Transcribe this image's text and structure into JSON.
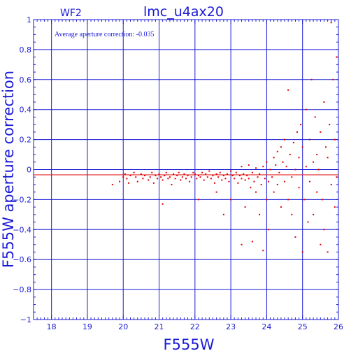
{
  "chart_data": {
    "type": "scatter",
    "title": "lmc_u4ax20",
    "panel_label": "WF2",
    "annotation": "Average aperture correction: -0.035",
    "xlabel": "F555W",
    "ylabel": "F555W aperture correction",
    "xlim": [
      17.5,
      26
    ],
    "ylim": [
      -1,
      1
    ],
    "x_ticks": [
      "18",
      "19",
      "20",
      "21",
      "22",
      "23",
      "24",
      "25",
      "26"
    ],
    "y_ticks": [
      "−1",
      "−0.8",
      "−0.6",
      "−0.4",
      "−0.2",
      "0",
      "0.2",
      "0.4",
      "0.6",
      "0.8",
      "1"
    ],
    "grid": true,
    "reference_line_y": -0.035,
    "colors": {
      "axes": "#1a1ad6",
      "points": "#e00000",
      "reference_line": "#e00000"
    },
    "series": [
      {
        "points": [
          [
            19.7,
            -0.1
          ],
          [
            19.9,
            -0.08
          ],
          [
            20.0,
            -0.05
          ],
          [
            20.05,
            -0.03
          ],
          [
            20.1,
            -0.06
          ],
          [
            20.15,
            -0.09
          ],
          [
            20.2,
            -0.04
          ],
          [
            20.3,
            -0.02
          ],
          [
            20.35,
            -0.05
          ],
          [
            20.4,
            -0.08
          ],
          [
            20.5,
            -0.03
          ],
          [
            20.55,
            -0.06
          ],
          [
            20.6,
            -0.04
          ],
          [
            20.7,
            -0.07
          ],
          [
            20.75,
            -0.05
          ],
          [
            20.8,
            -0.02
          ],
          [
            20.85,
            -0.09
          ],
          [
            20.9,
            -0.04
          ],
          [
            20.95,
            -0.06
          ],
          [
            21.0,
            -0.03
          ],
          [
            21.05,
            -0.05
          ],
          [
            21.1,
            -0.07
          ],
          [
            21.1,
            -0.23
          ],
          [
            21.15,
            -0.04
          ],
          [
            21.2,
            -0.02
          ],
          [
            21.25,
            -0.06
          ],
          [
            21.3,
            -0.05
          ],
          [
            21.35,
            -0.1
          ],
          [
            21.4,
            -0.03
          ],
          [
            21.45,
            -0.06
          ],
          [
            21.5,
            -0.04
          ],
          [
            21.55,
            -0.02
          ],
          [
            21.6,
            -0.07
          ],
          [
            21.65,
            -0.05
          ],
          [
            21.7,
            -0.03
          ],
          [
            21.75,
            -0.06
          ],
          [
            21.8,
            -0.04
          ],
          [
            21.85,
            -0.08
          ],
          [
            21.9,
            -0.05
          ],
          [
            21.95,
            -0.02
          ],
          [
            22.0,
            -0.03
          ],
          [
            22.05,
            -0.06
          ],
          [
            22.1,
            -0.04
          ],
          [
            22.1,
            -0.2
          ],
          [
            22.15,
            -0.05
          ],
          [
            22.2,
            -0.02
          ],
          [
            22.25,
            -0.07
          ],
          [
            22.3,
            -0.03
          ],
          [
            22.35,
            -0.05
          ],
          [
            22.4,
            -0.01
          ],
          [
            22.45,
            -0.06
          ],
          [
            22.5,
            -0.04
          ],
          [
            22.55,
            -0.09
          ],
          [
            22.6,
            -0.03
          ],
          [
            22.6,
            -0.15
          ],
          [
            22.65,
            -0.05
          ],
          [
            22.7,
            -0.02
          ],
          [
            22.75,
            -0.07
          ],
          [
            22.8,
            -0.04
          ],
          [
            22.8,
            -0.3
          ],
          [
            22.85,
            -0.06
          ],
          [
            22.9,
            -0.03
          ],
          [
            22.95,
            -0.08
          ],
          [
            23.0,
            -0.01
          ],
          [
            23.0,
            -0.2
          ],
          [
            23.05,
            -0.04
          ],
          [
            23.1,
            -0.06
          ],
          [
            23.15,
            -0.02
          ],
          [
            23.2,
            -0.09
          ],
          [
            23.25,
            -0.04
          ],
          [
            23.3,
            -0.06
          ],
          [
            23.3,
            0.02
          ],
          [
            23.3,
            -0.5
          ],
          [
            23.35,
            -0.03
          ],
          [
            23.4,
            -0.07
          ],
          [
            23.4,
            -0.25
          ],
          [
            23.45,
            -0.04
          ],
          [
            23.5,
            0.03
          ],
          [
            23.5,
            -0.06
          ],
          [
            23.55,
            -0.12
          ],
          [
            23.6,
            -0.02
          ],
          [
            23.6,
            -0.48
          ],
          [
            23.65,
            -0.08
          ],
          [
            23.7,
            0.01
          ],
          [
            23.7,
            -0.15
          ],
          [
            23.75,
            -0.05
          ],
          [
            23.8,
            -0.03
          ],
          [
            23.8,
            -0.3
          ],
          [
            23.85,
            -0.1
          ],
          [
            23.9,
            0.02
          ],
          [
            23.9,
            -0.54
          ],
          [
            23.95,
            -0.06
          ],
          [
            24.0,
            0.05
          ],
          [
            24.0,
            -0.2
          ],
          [
            24.05,
            -0.08
          ],
          [
            24.05,
            -0.4
          ],
          [
            24.1,
            0.0
          ],
          [
            24.15,
            -0.05
          ],
          [
            24.2,
            0.08
          ],
          [
            24.2,
            -0.15
          ],
          [
            24.25,
            0.03
          ],
          [
            24.3,
            -0.1
          ],
          [
            24.3,
            0.12
          ],
          [
            24.35,
            -0.02
          ],
          [
            24.4,
            0.15
          ],
          [
            24.4,
            -0.25
          ],
          [
            24.45,
            0.05
          ],
          [
            24.5,
            -0.08
          ],
          [
            24.5,
            0.2
          ],
          [
            24.55,
            0.02
          ],
          [
            24.6,
            0.53
          ],
          [
            24.6,
            -0.2
          ],
          [
            24.65,
            0.1
          ],
          [
            24.7,
            -0.05
          ],
          [
            24.7,
            -0.3
          ],
          [
            24.75,
            0.18
          ],
          [
            24.8,
            0.0
          ],
          [
            24.8,
            -0.45
          ],
          [
            24.85,
            0.25
          ],
          [
            24.9,
            -0.12
          ],
          [
            24.9,
            0.08
          ],
          [
            24.95,
            0.3
          ],
          [
            25.0,
            -0.55
          ],
          [
            25.0,
            0.15
          ],
          [
            25.05,
            -0.2
          ],
          [
            25.1,
            0.4
          ],
          [
            25.1,
            0.02
          ],
          [
            25.15,
            -0.35
          ],
          [
            25.2,
            0.2
          ],
          [
            25.2,
            -0.08
          ],
          [
            25.25,
            0.6
          ],
          [
            25.3,
            0.05
          ],
          [
            25.3,
            -0.3
          ],
          [
            25.35,
            0.35
          ],
          [
            25.4,
            -0.15
          ],
          [
            25.4,
            0.1
          ],
          [
            25.45,
            0.0
          ],
          [
            25.5,
            -0.5
          ],
          [
            25.5,
            0.25
          ],
          [
            25.55,
            -0.2
          ],
          [
            25.6,
            0.45
          ],
          [
            25.6,
            -0.4
          ],
          [
            25.65,
            0.15
          ],
          [
            25.7,
            -0.55
          ],
          [
            25.7,
            0.08
          ],
          [
            25.75,
            0.3
          ],
          [
            25.8,
            0.98
          ],
          [
            25.8,
            -0.1
          ],
          [
            25.85,
            0.6
          ],
          [
            25.9,
            0.2
          ],
          [
            25.9,
            -0.25
          ],
          [
            25.95,
            0.75
          ],
          [
            25.95,
            -0.05
          ]
        ]
      }
    ]
  }
}
